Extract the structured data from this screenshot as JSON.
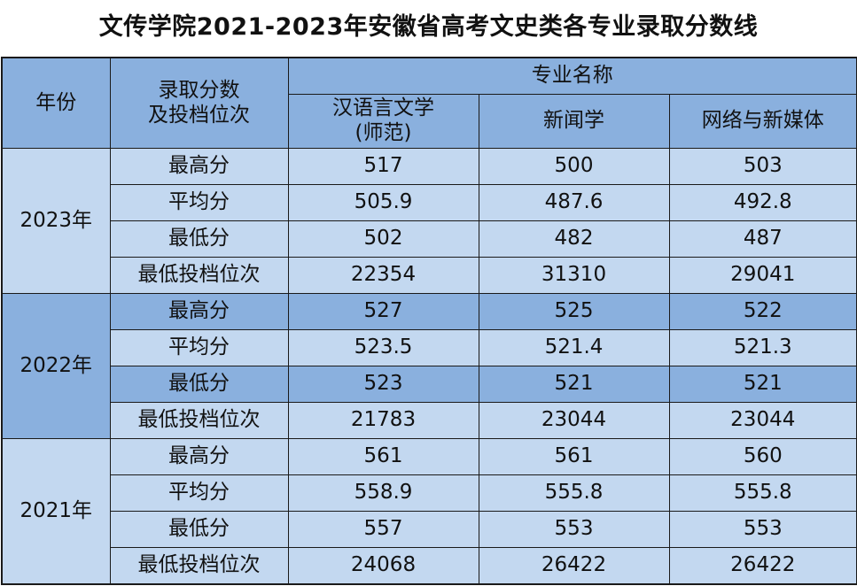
{
  "title": "文传学院2021-2023年安徽省高考文史类各专业录取分数线",
  "header": {
    "year_label": "年份",
    "metric_label_line1": "录取分数",
    "metric_label_line2": "及投档位次",
    "major_group_label": "专业名称",
    "majors": [
      {
        "line1": "汉语言文学",
        "line2": "(师范)"
      },
      {
        "line1": "新闻学",
        "line2": ""
      },
      {
        "line1": "网络与新媒体",
        "line2": ""
      }
    ]
  },
  "metrics": [
    "最高分",
    "平均分",
    "最低分",
    "最低投档位次"
  ],
  "years": [
    {
      "year": "2023年",
      "rows": [
        [
          "517",
          "500",
          "503"
        ],
        [
          "505.9",
          "487.6",
          "492.8"
        ],
        [
          "502",
          "482",
          "487"
        ],
        [
          "22354",
          "31310",
          "29041"
        ]
      ]
    },
    {
      "year": "2022年",
      "rows": [
        [
          "527",
          "525",
          "522"
        ],
        [
          "523.5",
          "521.4",
          "521.3"
        ],
        [
          "523",
          "521",
          "521"
        ],
        [
          "21783",
          "23044",
          "23044"
        ]
      ]
    },
    {
      "year": "2021年",
      "rows": [
        [
          "561",
          "561",
          "560"
        ],
        [
          "558.9",
          "555.8",
          "555.8"
        ],
        [
          "557",
          "553",
          "553"
        ],
        [
          "24068",
          "26422",
          "26422"
        ]
      ]
    }
  ],
  "colors": {
    "header": "#8ab0de",
    "light": "#c3d8f0",
    "dark": "#8ab0de"
  }
}
